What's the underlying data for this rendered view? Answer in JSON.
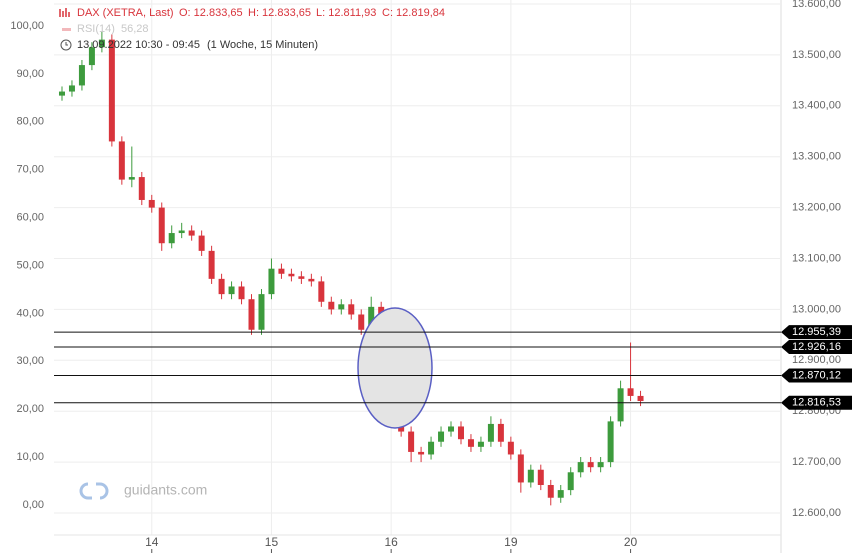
{
  "chart_data": {
    "type": "candlestick",
    "title": "DAX (XETRA, Last)",
    "ohlc_info": [
      "O: 12.833,65",
      "H: 12.833,65",
      "L: 12.811,93",
      "C: 12.819,84"
    ],
    "indicator": {
      "name": "RSI(14)",
      "value_label": "56,28"
    },
    "subtitle": "13.09.2022 10:30 - 09:45",
    "period": "(1 Woche, 15 Minuten)",
    "watermark": "guidants.com",
    "categories": [
      null,
      null,
      null,
      null,
      null,
      null,
      null,
      null,
      null,
      "14",
      null,
      null,
      null,
      null,
      null,
      null,
      null,
      null,
      null,
      null,
      null,
      "15",
      null,
      null,
      null,
      null,
      null,
      null,
      null,
      null,
      null,
      null,
      null,
      "16",
      null,
      null,
      null,
      null,
      null,
      null,
      null,
      null,
      null,
      null,
      null,
      "19",
      null,
      null,
      null,
      null,
      null,
      null,
      null,
      null,
      null,
      null,
      null,
      "20",
      null
    ],
    "open": [
      13420,
      13428,
      13440,
      13480,
      13515,
      13530,
      13330,
      13255,
      13260,
      13215,
      13200,
      13130,
      13150,
      13155,
      13145,
      13115,
      13060,
      13030,
      13045,
      13020,
      12960,
      13030,
      13080,
      13070,
      13065,
      13060,
      13055,
      13015,
      13000,
      13010,
      12990,
      12960,
      13005,
      12960,
      12935,
      12760,
      12720,
      12715,
      12740,
      12760,
      12770,
      12745,
      12730,
      12740,
      12775,
      12740,
      12715,
      12660,
      12685,
      12655,
      12630,
      12645,
      12680,
      12700,
      12690,
      12700,
      12780,
      12845,
      12830
    ],
    "high": [
      13438,
      13450,
      13490,
      13525,
      13545,
      13540,
      13340,
      13320,
      13270,
      13225,
      13210,
      13165,
      13170,
      13165,
      13155,
      13125,
      13070,
      13055,
      13055,
      13030,
      13040,
      13100,
      13090,
      13080,
      13075,
      13070,
      13065,
      13025,
      13020,
      13020,
      13000,
      13025,
      13015,
      12970,
      12945,
      12770,
      12730,
      12750,
      12770,
      12780,
      12780,
      12755,
      12750,
      12790,
      12785,
      12750,
      12725,
      12695,
      12695,
      12665,
      12655,
      12690,
      12710,
      12710,
      12710,
      12790,
      12860,
      12935,
      12840
    ],
    "low": [
      13410,
      13418,
      13430,
      13470,
      13505,
      13320,
      13245,
      13240,
      13205,
      13190,
      13115,
      13120,
      13140,
      13135,
      13105,
      13050,
      13020,
      13020,
      13010,
      12950,
      12950,
      13020,
      13060,
      13055,
      13050,
      13045,
      13005,
      12990,
      12990,
      12980,
      12950,
      12950,
      12950,
      12925,
      12750,
      12700,
      12700,
      12705,
      12730,
      12750,
      12735,
      12720,
      12720,
      12730,
      12730,
      12705,
      12640,
      12650,
      12645,
      12615,
      12620,
      12635,
      12670,
      12680,
      12680,
      12690,
      12770,
      12820,
      12810
    ],
    "close": [
      13428,
      13440,
      13480,
      13515,
      13530,
      13330,
      13255,
      13260,
      13215,
      13200,
      13130,
      13150,
      13155,
      13145,
      13115,
      13060,
      13030,
      13045,
      13020,
      12960,
      13030,
      13080,
      13070,
      13065,
      13060,
      13055,
      13015,
      13000,
      13010,
      12990,
      12960,
      13005,
      12960,
      12935,
      12760,
      12720,
      12715,
      12740,
      12760,
      12770,
      12745,
      12730,
      12740,
      12775,
      12740,
      12715,
      12660,
      12685,
      12655,
      12630,
      12645,
      12680,
      12700,
      12690,
      12700,
      12780,
      12845,
      12830,
      12820
    ],
    "up_color": "#3d9b3d",
    "down_color": "#d8343c",
    "ylim": [
      12600,
      13600
    ],
    "yticks": [
      {
        "value": 12600,
        "label": "12.600,00"
      },
      {
        "value": 12700,
        "label": "12.700,00"
      },
      {
        "value": 12800,
        "label": "12.800,00"
      },
      {
        "value": 12900,
        "label": "12.900,00"
      },
      {
        "value": 13000,
        "label": "13.000,00"
      },
      {
        "value": 13100,
        "label": "13.100,00"
      },
      {
        "value": 13200,
        "label": "13.200,00"
      },
      {
        "value": 13300,
        "label": "13.300,00"
      },
      {
        "value": 13400,
        "label": "13.400,00"
      },
      {
        "value": 13500,
        "label": "13.500,00"
      },
      {
        "value": 13600,
        "label": "13.600,00"
      }
    ],
    "y2lim": [
      0,
      100
    ],
    "y2ticks": [
      {
        "value": 0,
        "label": "0,00"
      },
      {
        "value": 10,
        "label": "10,00"
      },
      {
        "value": 20,
        "label": "20,00"
      },
      {
        "value": 30,
        "label": "30,00"
      },
      {
        "value": 40,
        "label": "40,00"
      },
      {
        "value": 50,
        "label": "50,00"
      },
      {
        "value": 60,
        "label": "60,00"
      },
      {
        "value": 70,
        "label": "70,00"
      },
      {
        "value": 80,
        "label": "80,00"
      },
      {
        "value": 90,
        "label": "90,00"
      },
      {
        "value": 100,
        "label": "100,00"
      }
    ],
    "hlines": [
      {
        "value": 12955.39,
        "label": "12.955,39"
      },
      {
        "value": 12926.16,
        "label": "12.926,16"
      },
      {
        "value": 12870.12,
        "label": "12.870,12"
      },
      {
        "value": 12816.53,
        "label": "12.816,53"
      }
    ],
    "grid": true
  }
}
